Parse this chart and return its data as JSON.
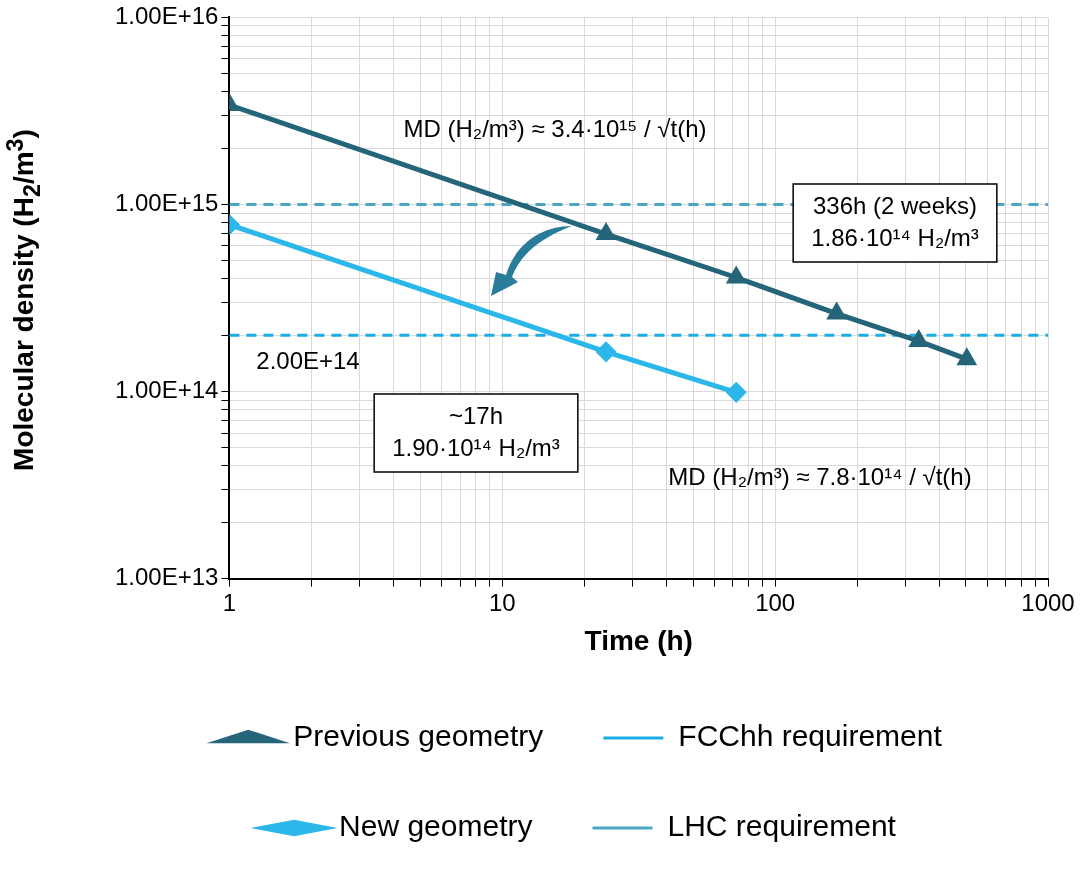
{
  "chart_data": {
    "type": "line",
    "xlabel": "Time (h)",
    "ylabel": "Molecular density (H$_{2}$/m$^{3}$)",
    "log": "xy",
    "grid": true,
    "legend": "bottom",
    "xlim": [
      1,
      1000
    ],
    "ylim": [
      10000000000000.0,
      1e+16
    ],
    "xticks": [
      1,
      {
        "value": 2,
        "label": null
      },
      {
        "value": 3,
        "label": null
      },
      {
        "value": 4,
        "label": null
      },
      {
        "value": 5,
        "label": null
      },
      {
        "value": 6,
        "label": null
      },
      {
        "value": 7,
        "label": null
      },
      {
        "value": 8,
        "label": null
      },
      {
        "value": 9,
        "label": null
      },
      10,
      {
        "value": 20,
        "label": null
      },
      {
        "value": 30,
        "label": null
      },
      {
        "value": 40,
        "label": null
      },
      {
        "value": 50,
        "label": null
      },
      {
        "value": 60,
        "label": null
      },
      {
        "value": 70,
        "label": null
      },
      {
        "value": 80,
        "label": null
      },
      {
        "value": 90,
        "label": null
      },
      100,
      {
        "value": 200,
        "label": null
      },
      {
        "value": 300,
        "label": null
      },
      {
        "value": 400,
        "label": null
      },
      {
        "value": 500,
        "label": null
      },
      {
        "value": 600,
        "label": null
      },
      {
        "value": 700,
        "label": null
      },
      {
        "value": 800,
        "label": null
      },
      {
        "value": 900,
        "label": null
      },
      1000
    ],
    "yticks": [
      {
        "value": 10000000000000.0,
        "label": "1.00E+13"
      },
      {
        "value": 20000000000000.0,
        "label": null
      },
      {
        "value": 30000000000000.0,
        "label": null
      },
      {
        "value": 40000000000000.0,
        "label": null
      },
      {
        "value": 50000000000000.0,
        "label": null
      },
      {
        "value": 60000000000000.0,
        "label": null
      },
      {
        "value": 70000000000000.0,
        "label": null
      },
      {
        "value": 80000000000000.0,
        "label": null
      },
      {
        "value": 90000000000000.0,
        "label": null
      },
      {
        "value": 100000000000000.0,
        "label": "1.00E+14"
      },
      {
        "value": 200000000000000.0,
        "label": null
      },
      {
        "value": 300000000000000.0,
        "label": null
      },
      {
        "value": 400000000000000.0,
        "label": null
      },
      {
        "value": 500000000000000.0,
        "label": null
      },
      {
        "value": 600000000000000.0,
        "label": null
      },
      {
        "value": 700000000000000.0,
        "label": null
      },
      {
        "value": 800000000000000.0,
        "label": null
      },
      {
        "value": 900000000000000.0,
        "label": null
      },
      {
        "value": 1000000000000000.0,
        "label": "1.00E+15"
      },
      {
        "value": 2000000000000000.0,
        "label": null
      },
      {
        "value": 3000000000000000.0,
        "label": null
      },
      {
        "value": 4000000000000000.0,
        "label": null
      },
      {
        "value": 5000000000000000.0,
        "label": null
      },
      {
        "value": 6000000000000000.0,
        "label": null
      },
      {
        "value": 7000000000000000.0,
        "label": null
      },
      {
        "value": 8000000000000000.0,
        "label": null
      },
      {
        "value": 9000000000000000.0,
        "label": null
      },
      {
        "value": 1e+16,
        "label": "1.00E+16"
      }
    ],
    "series": [
      {
        "name": "Previous geometry",
        "color": "#25657a",
        "marker": "triangle",
        "x": [
          1,
          24,
          72,
          168,
          336,
          504
        ],
        "values": [
          3400000000000000.0,
          695000000000000.0,
          407000000000000.0,
          261000000000000.0,
          186000000000000.0,
          149000000000000.0
        ]
      },
      {
        "name": "New geometry",
        "color": "#2bb7ea",
        "marker": "diamond",
        "x": [
          1,
          24,
          72
        ],
        "values": [
          780000000000000.0,
          163000000000000.0,
          99000000000000.0
        ]
      }
    ],
    "ref_lines": [
      {
        "axis": "y",
        "value": 200000000000000.0,
        "label": "FCChh requirement",
        "color": "#1aaee6",
        "line_style": "dashed"
      },
      {
        "axis": "y",
        "value": 1000000000000000.0,
        "label": "LHC requirement",
        "color": "#4aa6c2",
        "line_style": "dashed"
      }
    ],
    "annotations": [
      "MD (H₂/m³) ≈ 3.4·10¹⁵ / √t(h)",
      "MD (H₂/m³) ≈ 7.8·10¹⁴ / √t(h)",
      "2.00E+14",
      "336h (2 weeks)\n1.86·10¹⁴ H₂/m³",
      "~17h\n1.90·10¹⁴ H₂/m³"
    ]
  }
}
